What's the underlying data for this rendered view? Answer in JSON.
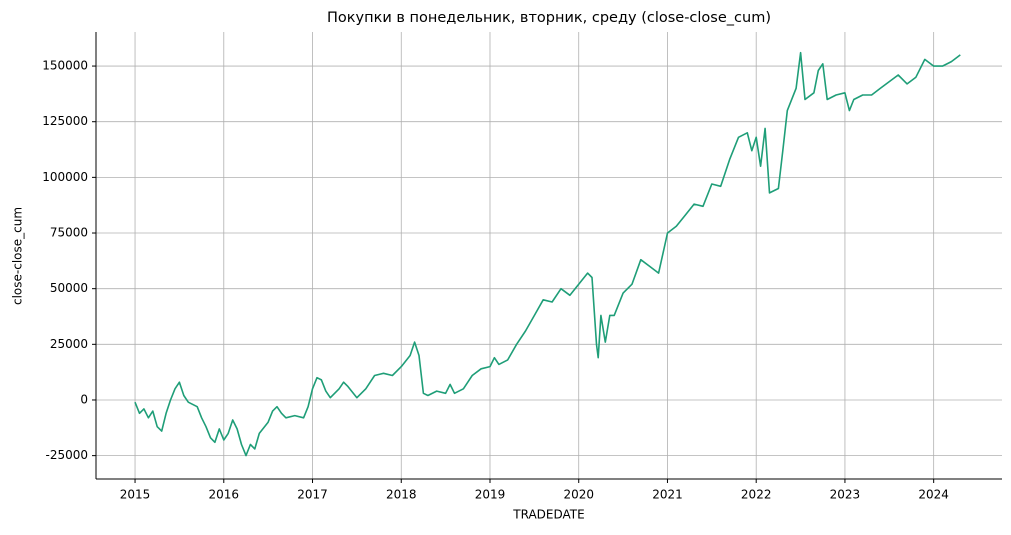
{
  "chart_data": {
    "type": "line",
    "title": "Покупки в понедельник, вторник, среду (close-close_cum)",
    "x_label": "TRADEDATE",
    "y_label": "close-close_cum",
    "x": [
      2015.0,
      2015.05,
      2015.1,
      2015.15,
      2015.2,
      2015.25,
      2015.3,
      2015.35,
      2015.4,
      2015.45,
      2015.5,
      2015.55,
      2015.6,
      2015.7,
      2015.75,
      2015.8,
      2015.85,
      2015.9,
      2015.95,
      2016.0,
      2016.05,
      2016.1,
      2016.15,
      2016.2,
      2016.25,
      2016.3,
      2016.35,
      2016.4,
      2016.5,
      2016.55,
      2016.6,
      2016.65,
      2016.7,
      2016.8,
      2016.9,
      2016.95,
      2017.0,
      2017.05,
      2017.1,
      2017.15,
      2017.2,
      2017.3,
      2017.35,
      2017.4,
      2017.5,
      2017.6,
      2017.7,
      2017.8,
      2017.9,
      2018.0,
      2018.1,
      2018.15,
      2018.2,
      2018.25,
      2018.3,
      2018.4,
      2018.5,
      2018.55,
      2018.6,
      2018.7,
      2018.8,
      2018.9,
      2019.0,
      2019.05,
      2019.1,
      2019.2,
      2019.3,
      2019.4,
      2019.5,
      2019.6,
      2019.7,
      2019.8,
      2019.9,
      2020.0,
      2020.1,
      2020.15,
      2020.2,
      2020.22,
      2020.25,
      2020.3,
      2020.35,
      2020.4,
      2020.5,
      2020.6,
      2020.7,
      2020.8,
      2020.9,
      2021.0,
      2021.1,
      2021.2,
      2021.3,
      2021.4,
      2021.5,
      2021.6,
      2021.7,
      2021.8,
      2021.9,
      2021.95,
      2022.0,
      2022.05,
      2022.1,
      2022.15,
      2022.25,
      2022.3,
      2022.35,
      2022.45,
      2022.5,
      2022.55,
      2022.65,
      2022.7,
      2022.75,
      2022.8,
      2022.9,
      2023.0,
      2023.05,
      2023.1,
      2023.2,
      2023.3,
      2023.4,
      2023.5,
      2023.6,
      2023.7,
      2023.8,
      2023.9,
      2024.0,
      2024.1,
      2024.2,
      2024.3
    ],
    "series": [
      {
        "name": "close-close_cum",
        "color": "#1f9e78",
        "values": [
          -1000,
          -6000,
          -4000,
          -8000,
          -5000,
          -12000,
          -14000,
          -6000,
          0,
          5000,
          8000,
          2000,
          -1000,
          -3000,
          -8000,
          -12000,
          -17000,
          -19000,
          -13000,
          -18000,
          -15000,
          -9000,
          -13000,
          -20000,
          -25000,
          -20000,
          -22000,
          -15000,
          -10000,
          -5000,
          -3000,
          -6000,
          -8000,
          -7000,
          -8000,
          -3000,
          5000,
          10000,
          9000,
          4000,
          1000,
          5000,
          8000,
          6000,
          1000,
          5000,
          11000,
          12000,
          11000,
          15000,
          20000,
          26000,
          20000,
          3000,
          2000,
          4000,
          3000,
          7000,
          3000,
          5000,
          11000,
          14000,
          15000,
          19000,
          16000,
          18000,
          25000,
          31000,
          38000,
          45000,
          44000,
          50000,
          47000,
          52000,
          57000,
          55000,
          25000,
          19000,
          38000,
          26000,
          38000,
          38000,
          48000,
          52000,
          63000,
          60000,
          57000,
          75000,
          78000,
          83000,
          88000,
          87000,
          97000,
          96000,
          108000,
          118000,
          120000,
          112000,
          118000,
          105000,
          122000,
          93000,
          95000,
          112000,
          130000,
          140000,
          156000,
          135000,
          138000,
          148000,
          151000,
          135000,
          137000,
          138000,
          130000,
          135000,
          137000,
          137000,
          140000,
          143000,
          146000,
          142000,
          145000,
          153000,
          150000,
          150000,
          152000,
          155000
        ]
      }
    ],
    "xlim": [
      2014.56,
      2024.77
    ],
    "xticks": [
      2015,
      2016,
      2017,
      2018,
      2019,
      2020,
      2021,
      2022,
      2023,
      2024
    ],
    "ylim": [
      -35500,
      165300
    ],
    "yticks": [
      -25000,
      0,
      25000,
      50000,
      75000,
      100000,
      125000,
      150000
    ],
    "grid": true
  }
}
